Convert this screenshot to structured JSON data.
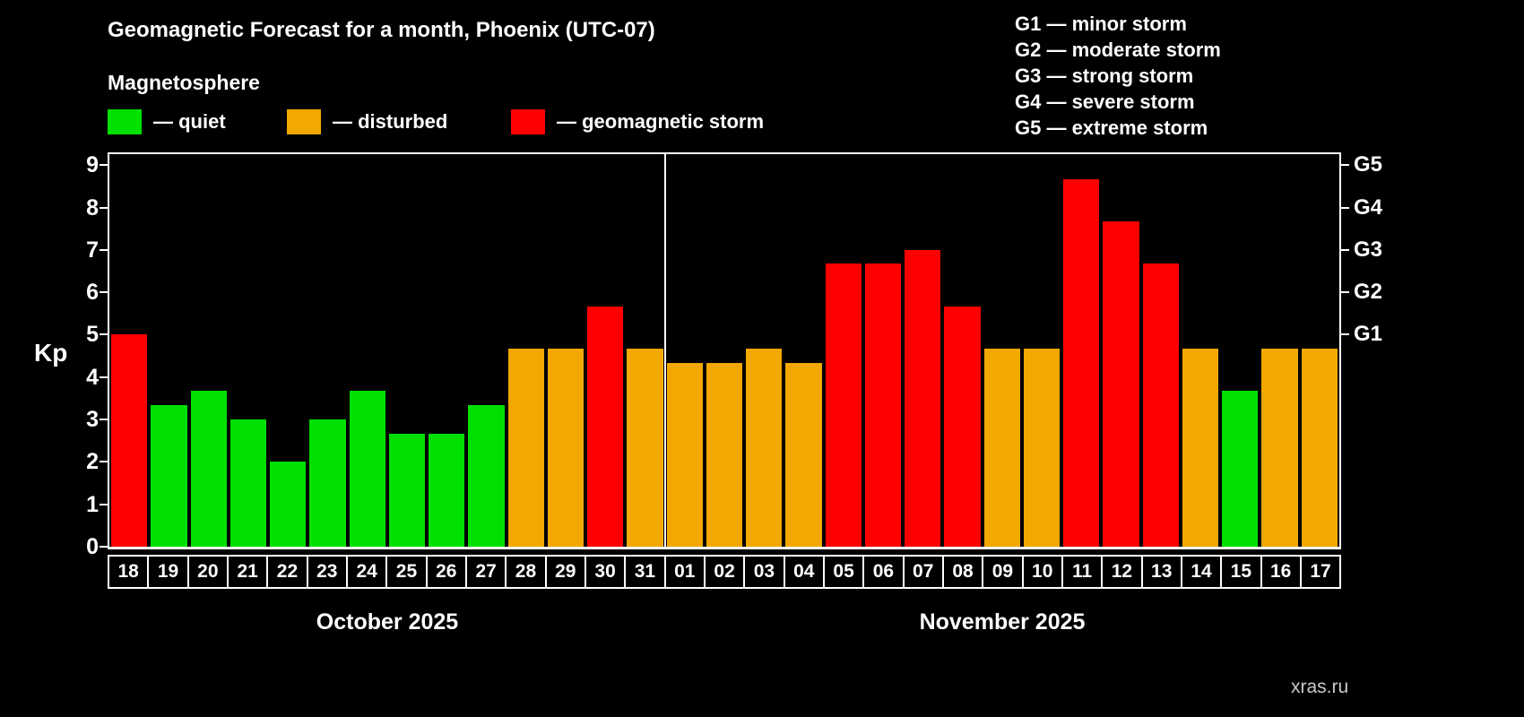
{
  "header": {
    "title": "Geomagnetic Forecast for a month, Phoenix (UTC-07)",
    "subtitle": "Magnetosphere",
    "legend": [
      {
        "key": "quiet",
        "label": "— quiet"
      },
      {
        "key": "disturbed",
        "label": "— disturbed"
      },
      {
        "key": "storm",
        "label": "— geomagnetic storm"
      }
    ],
    "storm_scale": [
      "G1 — minor storm",
      "G2 — moderate storm",
      "G3 — strong storm",
      "G4 — severe storm",
      "G5 — extreme storm"
    ]
  },
  "chart_data": {
    "type": "bar",
    "title": "Geomagnetic Forecast for a month, Phoenix (UTC-07)",
    "ylabel": "Kp",
    "xlabel": "",
    "ylim": [
      0,
      9.3
    ],
    "yticks": [
      0,
      1,
      2,
      3,
      4,
      5,
      6,
      7,
      8,
      9
    ],
    "grid": false,
    "legend_position": "top",
    "right_axis": [
      {
        "label": "G1",
        "value": 5
      },
      {
        "label": "G2",
        "value": 6
      },
      {
        "label": "G3",
        "value": 7
      },
      {
        "label": "G4",
        "value": 8
      },
      {
        "label": "G5",
        "value": 9
      }
    ],
    "colors": {
      "quiet": "#00e000",
      "disturbed": "#f2a800",
      "storm": "#ff0000",
      "background": "#000000",
      "frame": "#ffffff"
    },
    "months": [
      {
        "label": "October 2025",
        "days": 14
      },
      {
        "label": "November 2025",
        "days": 17
      }
    ],
    "bars": [
      {
        "day": "18",
        "value": 5.0,
        "status": "storm"
      },
      {
        "day": "19",
        "value": 3.33,
        "status": "quiet"
      },
      {
        "day": "20",
        "value": 3.67,
        "status": "quiet"
      },
      {
        "day": "21",
        "value": 3.0,
        "status": "quiet"
      },
      {
        "day": "22",
        "value": 2.0,
        "status": "quiet"
      },
      {
        "day": "23",
        "value": 3.0,
        "status": "quiet"
      },
      {
        "day": "24",
        "value": 3.67,
        "status": "quiet"
      },
      {
        "day": "25",
        "value": 2.67,
        "status": "quiet"
      },
      {
        "day": "26",
        "value": 2.67,
        "status": "quiet"
      },
      {
        "day": "27",
        "value": 3.33,
        "status": "quiet"
      },
      {
        "day": "28",
        "value": 4.67,
        "status": "disturbed"
      },
      {
        "day": "29",
        "value": 4.67,
        "status": "disturbed"
      },
      {
        "day": "30",
        "value": 5.67,
        "status": "storm"
      },
      {
        "day": "31",
        "value": 4.67,
        "status": "disturbed"
      },
      {
        "day": "01",
        "value": 4.33,
        "status": "disturbed"
      },
      {
        "day": "02",
        "value": 4.33,
        "status": "disturbed"
      },
      {
        "day": "03",
        "value": 4.67,
        "status": "disturbed"
      },
      {
        "day": "04",
        "value": 4.33,
        "status": "disturbed"
      },
      {
        "day": "05",
        "value": 6.67,
        "status": "storm"
      },
      {
        "day": "06",
        "value": 6.67,
        "status": "storm"
      },
      {
        "day": "07",
        "value": 7.0,
        "status": "storm"
      },
      {
        "day": "08",
        "value": 5.67,
        "status": "storm"
      },
      {
        "day": "09",
        "value": 4.67,
        "status": "disturbed"
      },
      {
        "day": "10",
        "value": 4.67,
        "status": "disturbed"
      },
      {
        "day": "11",
        "value": 8.67,
        "status": "storm"
      },
      {
        "day": "12",
        "value": 7.67,
        "status": "storm"
      },
      {
        "day": "13",
        "value": 6.67,
        "status": "storm"
      },
      {
        "day": "14",
        "value": 4.67,
        "status": "disturbed"
      },
      {
        "day": "15",
        "value": 3.67,
        "status": "quiet"
      },
      {
        "day": "16",
        "value": 4.67,
        "status": "disturbed"
      },
      {
        "day": "17",
        "value": 4.67,
        "status": "disturbed"
      }
    ]
  },
  "watermark": "xras.ru"
}
